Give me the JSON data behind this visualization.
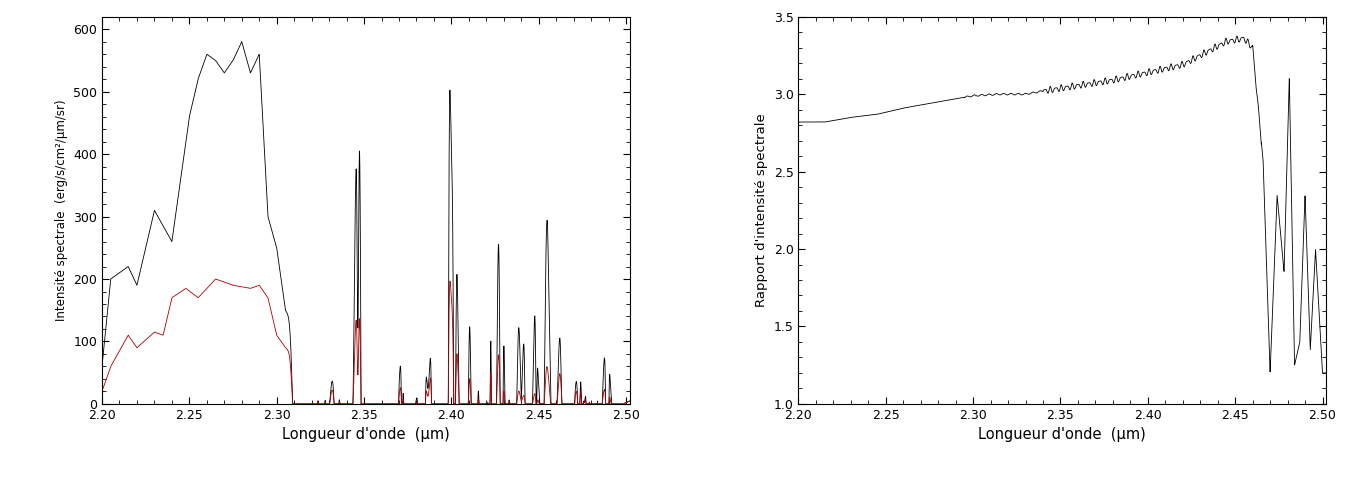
{
  "xlim": [
    2.2,
    2.502
  ],
  "left_ylim": [
    0,
    620
  ],
  "right_ylim": [
    1.0,
    3.5
  ],
  "left_yticks": [
    0,
    100,
    200,
    300,
    400,
    500,
    600
  ],
  "right_yticks": [
    1.0,
    1.5,
    2.0,
    2.5,
    3.0,
    3.5
  ],
  "xticks": [
    2.2,
    2.25,
    2.3,
    2.35,
    2.4,
    2.45,
    2.5
  ],
  "xlabel": "Longueur d'onde  (μm)",
  "left_ylabel": "Intensité spectrale  (erg/s/cm²/μm/sr)",
  "right_ylabel": "Rapport d'intensité spectrale",
  "black_color": "#000000",
  "red_color": "#aa0000",
  "bg_color": "#ffffff",
  "linewidth": 0.6
}
